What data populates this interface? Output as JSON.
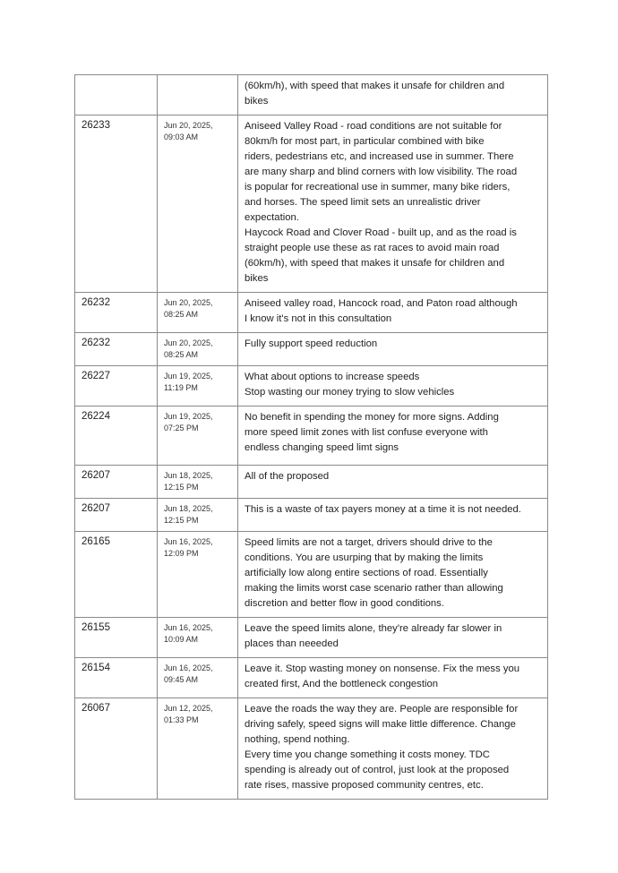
{
  "table": {
    "rows": [
      {
        "id": "",
        "date": [
          "",
          ""
        ],
        "comment": [
          "(60km/h), with speed that makes it unsafe for children and",
          "bikes"
        ],
        "h": 44
      },
      {
        "id": "26233",
        "date": [
          "Jun 20, 2025,",
          "09:03 AM"
        ],
        "comment": [
          "Aniseed Valley Road - road conditions are not suitable for",
          "80km/h for most part, in particular combined with bike",
          "riders, pedestrians etc, and increased use in summer. There",
          "are many sharp and blind corners with low visibility. The road",
          "is popular for recreational use in summer, many bike riders,",
          "and horses. The speed limit sets an unrealistic driver",
          "expectation.",
          "Haycock Road and Clover Road - built up, and as the road is",
          "straight people use these as rat races to avoid main road",
          "(60km/h), with speed that makes it unsafe for children and",
          "bikes"
        ]
      },
      {
        "id": "26232",
        "date": [
          "Jun 20, 2025,",
          "08:25 AM"
        ],
        "comment": [
          "Aniseed valley road,  Hancock road, and Paton road although",
          "I know it's not in this consultation"
        ]
      },
      {
        "id": "26232",
        "date": [
          "Jun 20, 2025,",
          "08:25 AM"
        ],
        "comment": [
          "Fully support speed reduction"
        ]
      },
      {
        "id": "26227",
        "date": [
          "Jun 19, 2025,",
          "11:19 PM"
        ],
        "comment": [
          "What about options to increase speeds",
          "Stop wasting our money trying to slow vehicles"
        ]
      },
      {
        "id": "26224",
        "date": [
          "Jun 19, 2025,",
          "07:25 PM"
        ],
        "comment": [
          "No benefit in spending the money for more signs. Adding",
          "more speed limit zones with list confuse everyone with",
          "endless changing  speed limt signs"
        ]
      },
      {
        "id": "26207",
        "date": [
          "Jun 18, 2025,",
          "12:15 PM"
        ],
        "comment": [
          "All of the proposed"
        ]
      },
      {
        "id": "26207",
        "date": [
          "Jun 18, 2025,",
          "12:15 PM"
        ],
        "comment": [
          "This is a waste of tax payers money at a time it is not needed."
        ]
      },
      {
        "id": "26165",
        "date": [
          "Jun 16, 2025,",
          "12:09 PM"
        ],
        "comment": [
          "Speed limits are not a target, drivers should drive to the",
          "conditions. You are usurping that by making the limits",
          "artificially low along entire sections of road. Essentially",
          "making the limits worst case scenario rather than allowing",
          "discretion and better flow in good conditions."
        ]
      },
      {
        "id": "26155",
        "date": [
          "Jun 16, 2025,",
          "10:09 AM"
        ],
        "comment": [
          "Leave the speed limits alone, they're already far slower in",
          "places than neeeded"
        ]
      },
      {
        "id": "26154",
        "date": [
          "Jun 16, 2025,",
          "09:45 AM"
        ],
        "comment": [
          "Leave it. Stop wasting money on nonsense. Fix the mess you",
          "created first, And the bottleneck congestion"
        ]
      },
      {
        "id": "26067",
        "date": [
          "Jun 12, 2025,",
          "01:33 PM"
        ],
        "comment": [
          "Leave the roads the way they are. People are responsible for",
          "driving safely, speed signs will make little difference. Change",
          "nothing, spend nothing.",
          "Every time you change something it costs money. TDC",
          "spending is already out of control, just look at the proposed",
          "rate rises, massive proposed community centres, etc."
        ]
      }
    ]
  }
}
